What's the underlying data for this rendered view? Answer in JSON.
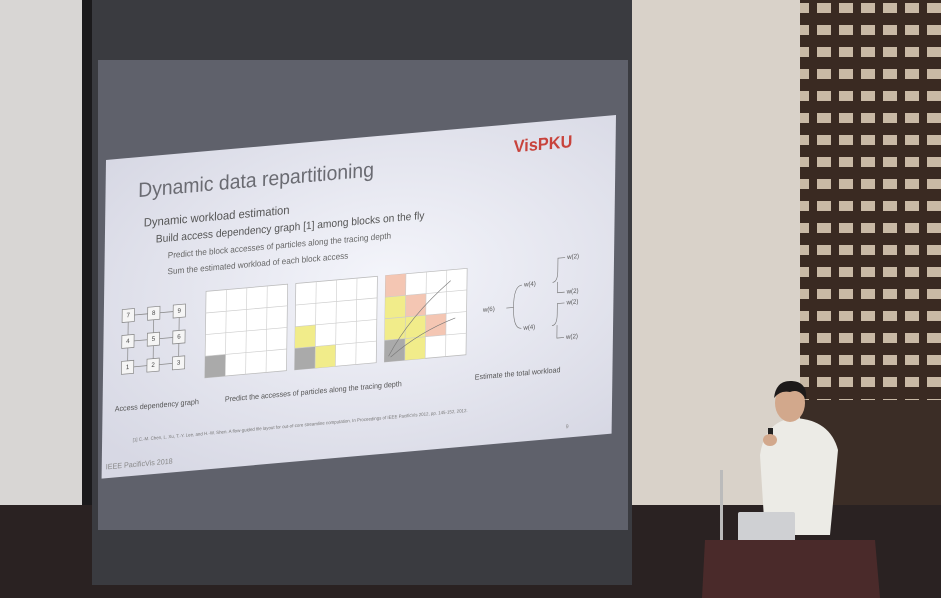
{
  "slide": {
    "logo": "VisPKU",
    "title": "Dynamic data repartitioning",
    "bullets": [
      "Dynamic workload estimation",
      "Build access dependency graph [1] among blocks on the fly",
      "Predict the block accesses of particles along the tracing depth",
      "Sum the estimated workload of each block access"
    ],
    "graph_nodes": [
      "7",
      "8",
      "9",
      "4",
      "5",
      "6",
      "1",
      "2",
      "3"
    ],
    "tree_labels": [
      "w(6)",
      "w(4)",
      "w(4)",
      "w(2)",
      "w(2)",
      "w(2)",
      "w(2)"
    ],
    "captions": [
      "Access dependency graph",
      "Predict the accesses of particles along the tracing depth",
      "Estimate the total workload"
    ],
    "reference": "[1] C.-M. Chen, L. Xu, T.-Y. Lee, and H.-W. Shen. A flow-guided file layout for out-of-core streamline computation. In Proceedings of IEEE PacificVis 2012, pp. 145-152, 2012.",
    "footer": "IEEE PacificVis 2018",
    "page": "9"
  }
}
